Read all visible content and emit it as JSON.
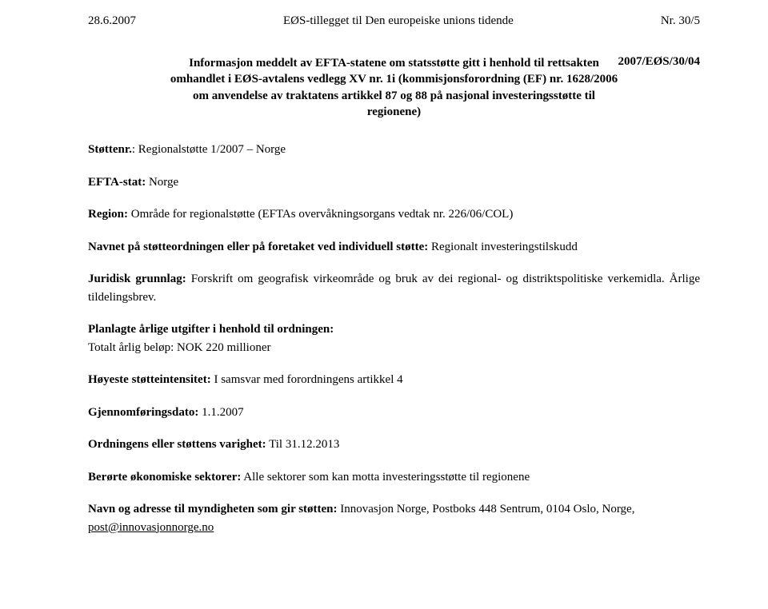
{
  "header": {
    "left": "28.6.2007",
    "center": "EØS-tillegget til Den europeiske unions tidende",
    "right": "Nr. 30/5"
  },
  "title": {
    "line1": "Informasjon meddelt av EFTA-statene om statsstøtte gitt i henhold til rettsakten omhandlet i EØS-avtalens vedlegg XV nr. 1i (kommisjonsforordning (EF) nr. 1628/2006 om anvendelse av traktatens artikkel 87 og 88 på nasjonal investeringsstøtte til regionene)",
    "right_marker": "2007/EØS/30/04"
  },
  "fields": {
    "stottenr_label": "Støttenr.",
    "stottenr_value": ": Regionalstøtte 1/2007 – Norge",
    "efta_stat_label": "EFTA-stat:",
    "efta_stat_value": " Norge",
    "region_label": "Region:",
    "region_value": " Område for regionalstøtte (EFTAs overvåkningsorgans vedtak nr. 226/06/COL)",
    "navnet_label": "Navnet på støtteordningen eller på foretaket ved individuell støtte:",
    "navnet_value": " Regionalt investeringstilskudd",
    "juridisk_label": "Juridisk grunnlag:",
    "juridisk_value": " Forskrift om geografisk virkeområde og bruk av dei regional- og distriktspolitiske verkemidla. Årlige tildelingsbrev.",
    "planlagte_label": "Planlagte årlige utgifter i henhold til ordningen:",
    "planlagte_value": "Totalt årlig beløp: NOK 220 millioner",
    "hoyeste_label": "Høyeste støtteintensitet:",
    "hoyeste_value": " I samsvar med forordningens artikkel 4",
    "gjennom_label": "Gjennomføringsdato:",
    "gjennom_value": " 1.1.2007",
    "varighet_label": "Ordningens eller støttens varighet:",
    "varighet_value": " Til 31.12.2013",
    "berorte_label": "Berørte økonomiske sektorer:",
    "berorte_value": " Alle sektorer som kan motta investeringsstøtte til regionene",
    "navn_adresse_label": "Navn og adresse til myndigheten som gir støtten:",
    "navn_adresse_value_pre": " Innovasjon Norge, Postboks 448 Sentrum, 0104 Oslo, Norge, ",
    "navn_adresse_link": "post@innovasjonnorge.no"
  }
}
